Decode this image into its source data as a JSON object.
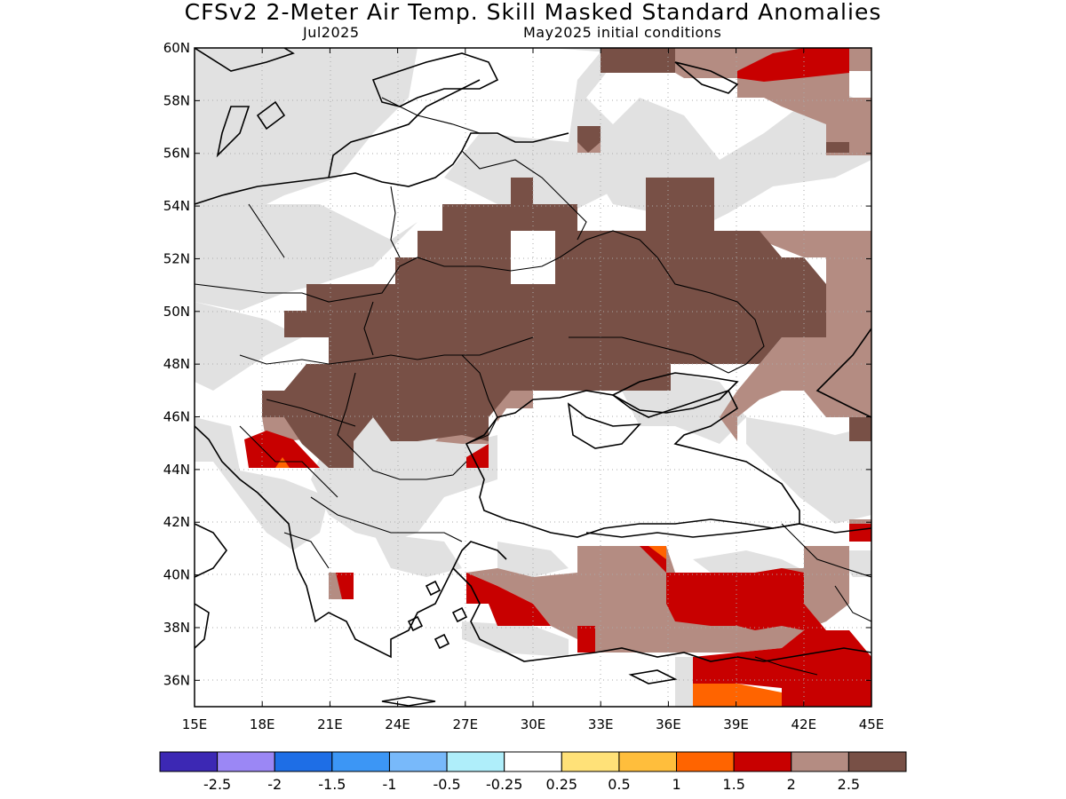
{
  "title": "CFSv2 2-Meter Air Temp. Skill Masked Standard Anomalies",
  "subtitle_left": "Jul2025",
  "subtitle_right": "May2025 initial conditions",
  "map": {
    "lon_range": [
      15,
      45
    ],
    "lat_range": [
      35,
      60
    ],
    "lon_ticks": [
      "15E",
      "18E",
      "21E",
      "24E",
      "27E",
      "30E",
      "33E",
      "36E",
      "39E",
      "42E",
      "45E"
    ],
    "lat_ticks": [
      "36N",
      "38N",
      "40N",
      "42N",
      "44N",
      "46N",
      "48N",
      "50N",
      "52N",
      "54N",
      "56N",
      "58N",
      "60N"
    ],
    "grid": true,
    "masked_color": "#e1e1e1"
  },
  "colorbar": {
    "colors": [
      "#3c28b4",
      "#9b87f5",
      "#1e6ee6",
      "#3c96f5",
      "#78b9fa",
      "#afeefa",
      "#ffffff",
      "#ffe178",
      "#ffbe3c",
      "#ff6400",
      "#c80000",
      "#b48c82",
      "#785046"
    ],
    "labels": [
      "-2.5",
      "-2",
      "-1.5",
      "-1",
      "-0.5",
      "-0.25",
      "0.25",
      "0.5",
      "1",
      "1.5",
      "2",
      "2.5"
    ]
  }
}
